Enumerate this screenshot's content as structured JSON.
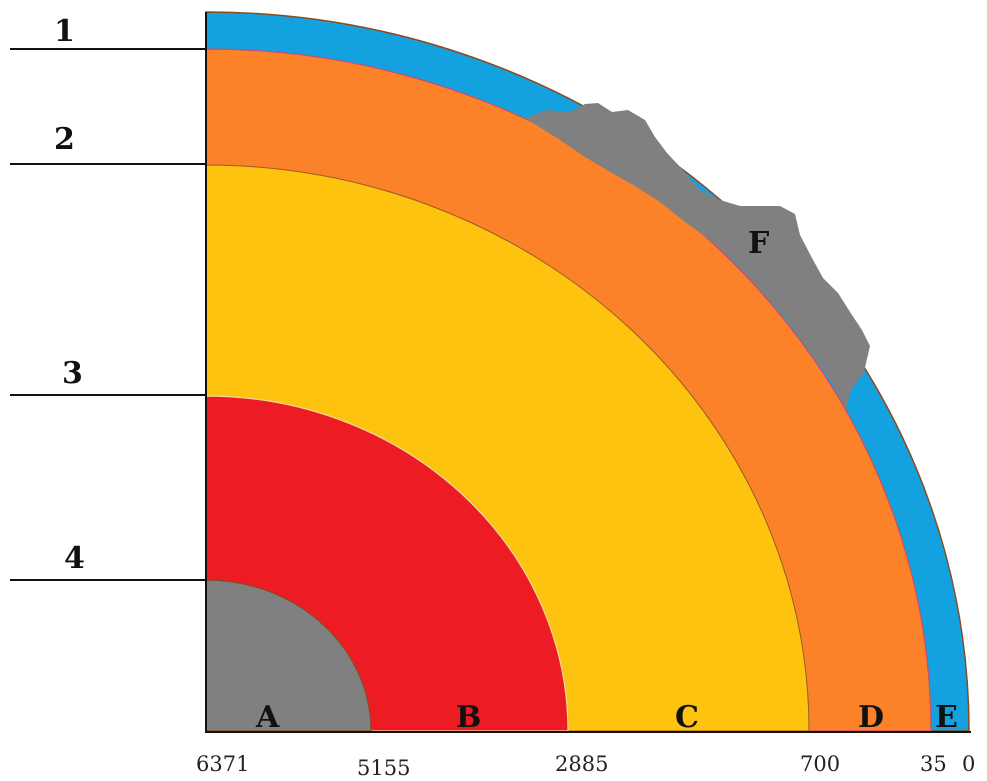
{
  "diagram": {
    "layers": [
      {
        "letter": "A",
        "color": "#808080"
      },
      {
        "letter": "B",
        "color": "#ed1c24"
      },
      {
        "letter": "C",
        "color": "#fec30f"
      },
      {
        "letter": "D",
        "color": "#fb8228"
      },
      {
        "letter": "E",
        "color": "#14a1e0"
      }
    ],
    "crust_mass_label": "F",
    "crust_mass_color": "#808080",
    "boundary_numbers": [
      "1",
      "2",
      "3",
      "4"
    ],
    "depth_ticks": [
      "6371",
      "5155",
      "2885",
      "700",
      "35",
      "0"
    ]
  }
}
